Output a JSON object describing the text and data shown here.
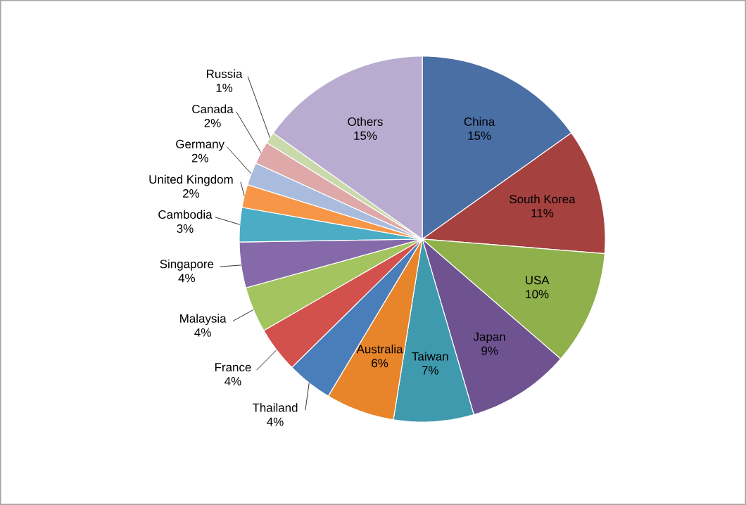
{
  "chart_data": {
    "type": "pie",
    "categories": [
      "China",
      "South Korea",
      "USA",
      "Japan",
      "Taiwan",
      "Australia",
      "Thailand",
      "France",
      "Malaysia",
      "Singapore",
      "Cambodia",
      "United Kingdom",
      "Germany",
      "Canada",
      "Russia",
      "Others"
    ],
    "values": [
      15,
      11,
      10,
      9,
      7,
      6,
      4,
      4,
      4,
      4,
      3,
      2,
      2,
      2,
      1,
      15
    ],
    "value_labels": [
      "15%",
      "11%",
      "10%",
      "9%",
      "7%",
      "6%",
      "4%",
      "4%",
      "4%",
      "4%",
      "3%",
      "2%",
      "2%",
      "2%",
      "1%",
      "15%"
    ],
    "colors": [
      "#4a6fa5",
      "#a5413f",
      "#8fb04a",
      "#6f5391",
      "#3f9aae",
      "#e8842a",
      "#4a7ebb",
      "#d3514c",
      "#a4c45f",
      "#8569a8",
      "#4bacc6",
      "#f79646",
      "#a9bcdd",
      "#dea9a8",
      "#c9d9a9",
      "#b9acd0"
    ]
  }
}
